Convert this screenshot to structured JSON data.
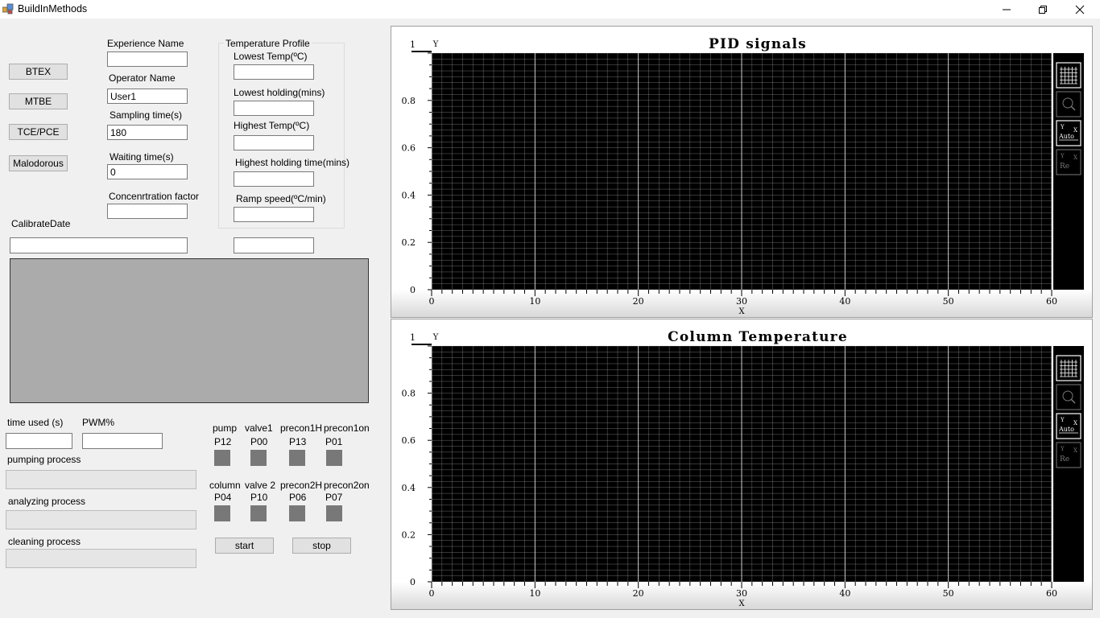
{
  "window": {
    "title": "BuildInMethods"
  },
  "method_buttons": [
    "BTEX",
    "MTBE",
    "TCE/PCE",
    "Malodorous"
  ],
  "fields": {
    "experience_name": {
      "label": "Experience Name",
      "value": ""
    },
    "operator_name": {
      "label": "Operator Name",
      "value": "User1"
    },
    "sampling_time": {
      "label": "Sampling time(s)",
      "value": "180"
    },
    "waiting_time": {
      "label": "Waiting time(s)",
      "value": "0"
    },
    "concentration_factor": {
      "label": "Concenrtration factor",
      "value": ""
    },
    "calibrate_date": {
      "label": "CalibrateDate",
      "value": ""
    },
    "extra_value": ""
  },
  "temperature_profile": {
    "title": "Temperature Profile",
    "lowest_temp": {
      "label": "Lowest Temp(ºC)",
      "value": ""
    },
    "lowest_holding": {
      "label": "Lowest holding(mins)",
      "value": ""
    },
    "highest_temp": {
      "label": "Highest Temp(ºC)",
      "value": ""
    },
    "highest_holding": {
      "label": "Highest holding time(mins)",
      "value": ""
    },
    "ramp_speed": {
      "label": "Ramp speed(ºC/min)",
      "value": ""
    }
  },
  "status": {
    "time_used": {
      "label": "time used (s)",
      "value": ""
    },
    "pwm": {
      "label": "PWM%",
      "value": ""
    },
    "pumping_label": "pumping process",
    "analyzing_label": "analyzing process",
    "cleaning_label": "cleaning process"
  },
  "indicators_row1": [
    {
      "name": "pump",
      "port": "P12"
    },
    {
      "name": "valve1",
      "port": "P00"
    },
    {
      "name": "precon1H",
      "port": "P13"
    },
    {
      "name": "precon1on",
      "port": "P01"
    }
  ],
  "indicators_row2": [
    {
      "name": "column",
      "port": "P04"
    },
    {
      "name": "valve 2",
      "port": "P10"
    },
    {
      "name": "precon2H",
      "port": "P06"
    },
    {
      "name": "precon2on",
      "port": "P07"
    }
  ],
  "controls": {
    "start": "start",
    "stop": "stop"
  },
  "colors": {
    "plot_bg": "#000000",
    "grid": "#bdbdbd",
    "indicator": "#787878",
    "log_panel": "#ababab"
  },
  "chart_data": [
    {
      "type": "line",
      "title": "PID signals",
      "xlabel": "X",
      "ylabel": "Y",
      "xlim": [
        0,
        60
      ],
      "ylim": [
        0,
        1
      ],
      "x_ticks": [
        "0",
        "10",
        "20",
        "30",
        "40",
        "50",
        "60"
      ],
      "y_ticks": [
        "0",
        "0.2",
        "0.4",
        "0.6",
        "0.8",
        "1"
      ],
      "series": [],
      "grid": true,
      "toolbar": [
        "grid-icon",
        "zoom-icon",
        "y-auto-icon",
        "y-reset-icon"
      ],
      "toolbar_text": {
        "auto_y": "Y",
        "auto_x": "X",
        "auto": "Auto",
        "re_y": "Y",
        "re_x": "X",
        "re": "Re"
      }
    },
    {
      "type": "line",
      "title": "Column Temperature",
      "xlabel": "X",
      "ylabel": "Y",
      "xlim": [
        0,
        60
      ],
      "ylim": [
        0,
        1
      ],
      "x_ticks": [
        "0",
        "10",
        "20",
        "30",
        "40",
        "50",
        "60"
      ],
      "y_ticks": [
        "0",
        "0.2",
        "0.4",
        "0.6",
        "0.8",
        "1"
      ],
      "series": [],
      "grid": true,
      "toolbar": [
        "grid-icon",
        "zoom-icon",
        "y-auto-icon",
        "y-reset-icon"
      ],
      "toolbar_text": {
        "auto_y": "Y",
        "auto_x": "X",
        "auto": "Auto",
        "re_y": "Y",
        "re_x": "X",
        "re": "Re"
      }
    }
  ]
}
